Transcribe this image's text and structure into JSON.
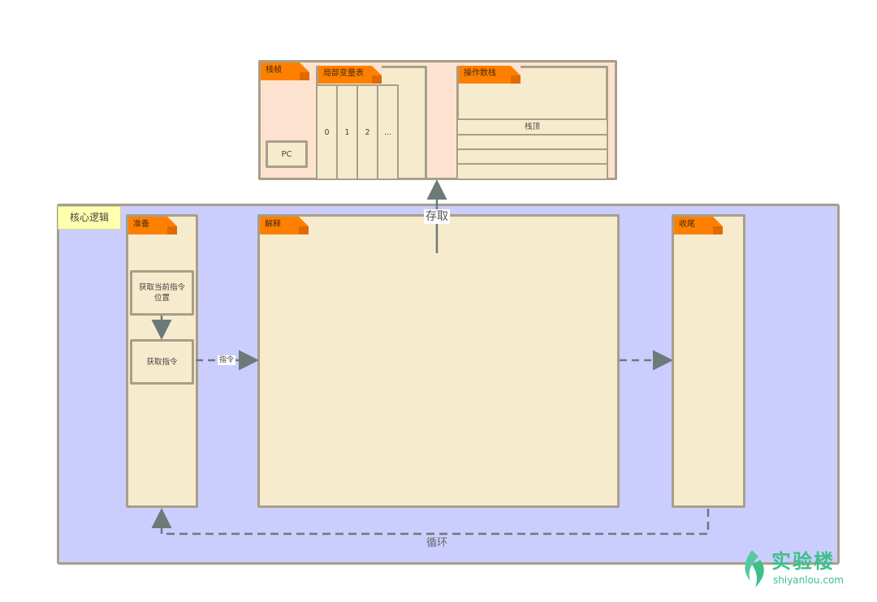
{
  "runtime": {
    "stack_frame_label": "栈帧",
    "pc_label": "PC",
    "local_vars_label": "局部变量表",
    "local_var_slots": [
      "0",
      "1",
      "2",
      "..."
    ],
    "operand_stack_label": "操作数栈",
    "stack_top_label": "栈顶"
  },
  "core": {
    "group_label": "核心逻辑",
    "prepare_label": "准备",
    "fetch_position_label": "获取当前指令位置",
    "fetch_instruction_label": "获取指令",
    "decode_label": "解释",
    "finish_label": "收尾"
  },
  "edges": {
    "access_label": "存取",
    "instruction_label": "指令",
    "loop_label": "循环"
  },
  "watermark": {
    "brand_cn": "实验楼",
    "brand_url": "shiyanlou.com",
    "brand_color": "#3cc08a"
  },
  "colors": {
    "frame": "#a89f8a",
    "cream": "#f6ebcc",
    "peach": "#fde3cf",
    "violet": "#cccdff",
    "tab": "#ff8000",
    "arrow": "#6c7a78"
  }
}
